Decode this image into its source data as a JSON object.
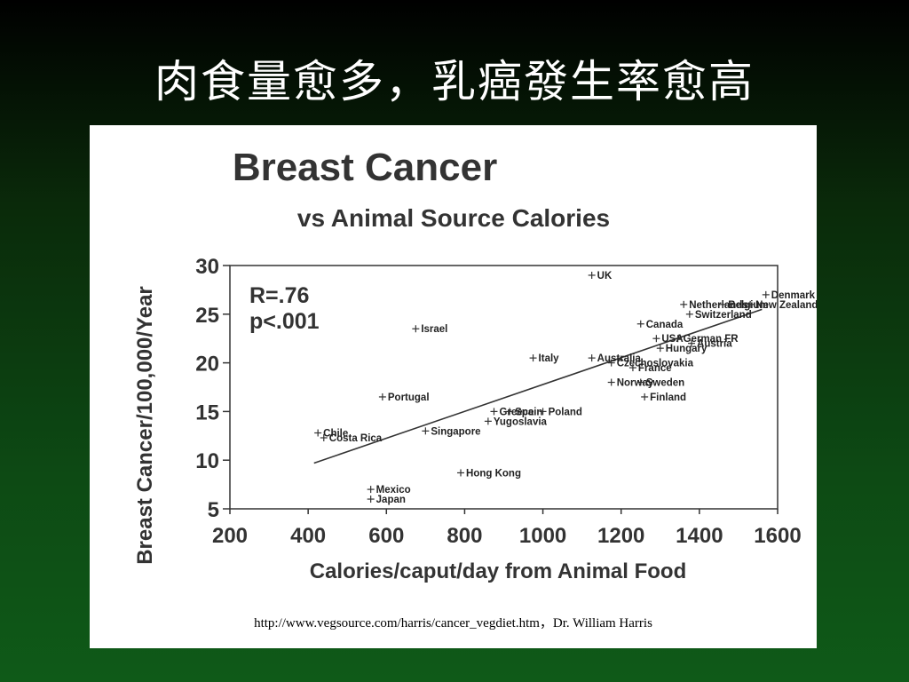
{
  "slide": {
    "title": "肉食量愈多，乳癌發生率愈高",
    "source_note": "http://www.vegsource.com/harris/cancer_vegdiet.htm，Dr. William Harris"
  },
  "chart_data": {
    "type": "scatter",
    "title": "Breast Cancer",
    "subtitle": "vs Animal Source Calories",
    "xlabel": "Calories/caput/day from Animal Food",
    "ylabel": "Breast Cancer/100,000/Year",
    "xlim": [
      200,
      1600
    ],
    "ylim": [
      5,
      30
    ],
    "x_ticks": [
      "200",
      "400",
      "600",
      "800",
      "1000",
      "1200",
      "1400",
      "1600"
    ],
    "y_ticks": [
      "5",
      "10",
      "15",
      "20",
      "25",
      "30"
    ],
    "grid": false,
    "stats": [
      "R=.76",
      "p<.001"
    ],
    "trendline": {
      "x": [
        415,
        1560
      ],
      "y": [
        9.7,
        25.5
      ]
    },
    "points": [
      {
        "label": "UK",
        "x": 1125,
        "y": 29
      },
      {
        "label": "Denmark",
        "x": 1570,
        "y": 27
      },
      {
        "label": "Netherlands",
        "x": 1360,
        "y": 26
      },
      {
        "label": "Belgium",
        "x": 1460,
        "y": 26
      },
      {
        "label": "New Zealand",
        "x": 1530,
        "y": 26
      },
      {
        "label": "Switzerland",
        "x": 1375,
        "y": 25
      },
      {
        "label": "Canada",
        "x": 1250,
        "y": 24
      },
      {
        "label": "Israel",
        "x": 675,
        "y": 23.5
      },
      {
        "label": "USA",
        "x": 1290,
        "y": 22.5
      },
      {
        "label": "German FR",
        "x": 1345,
        "y": 22.5
      },
      {
        "label": "Austria",
        "x": 1380,
        "y": 22
      },
      {
        "label": "Hungary",
        "x": 1300,
        "y": 21.5
      },
      {
        "label": "Italy",
        "x": 975,
        "y": 20.5
      },
      {
        "label": "Australia",
        "x": 1125,
        "y": 20.5
      },
      {
        "label": "Czechoslovakia",
        "x": 1175,
        "y": 20
      },
      {
        "label": "France",
        "x": 1230,
        "y": 19.5
      },
      {
        "label": "Norway",
        "x": 1175,
        "y": 18
      },
      {
        "label": "Sweden",
        "x": 1250,
        "y": 18
      },
      {
        "label": "Finland",
        "x": 1260,
        "y": 16.5
      },
      {
        "label": "Portugal",
        "x": 590,
        "y": 16.5
      },
      {
        "label": "Greece",
        "x": 875,
        "y": 15
      },
      {
        "label": "Spain",
        "x": 915,
        "y": 15
      },
      {
        "label": "Poland",
        "x": 1000,
        "y": 15
      },
      {
        "label": "Yugoslavia",
        "x": 860,
        "y": 14
      },
      {
        "label": "Singapore",
        "x": 700,
        "y": 13
      },
      {
        "label": "Chile",
        "x": 425,
        "y": 12.8
      },
      {
        "label": "Costa Rica",
        "x": 440,
        "y": 12.3
      },
      {
        "label": "Hong Kong",
        "x": 790,
        "y": 8.7
      },
      {
        "label": "Mexico",
        "x": 560,
        "y": 7
      },
      {
        "label": "Japan",
        "x": 560,
        "y": 6
      }
    ]
  }
}
